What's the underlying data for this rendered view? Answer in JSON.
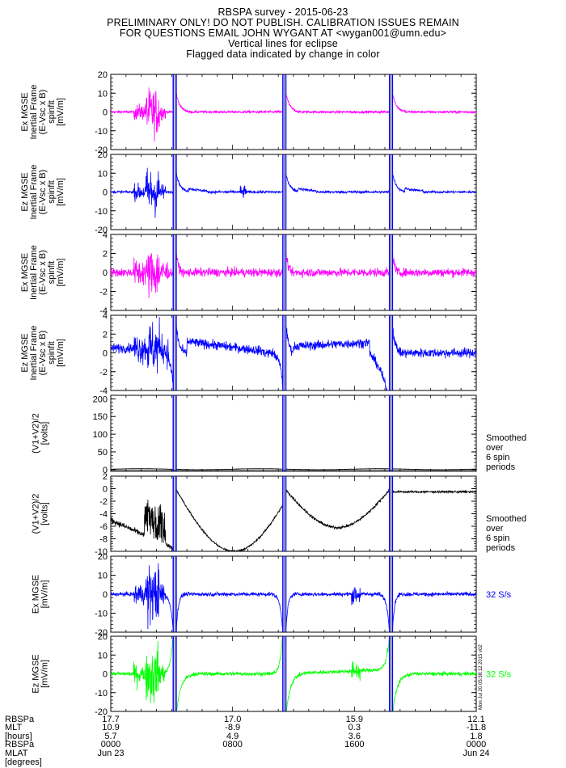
{
  "title_lines": [
    "RBSPA survey - 2015-06-23",
    "PRELIMINARY ONLY! DO NOT PUBLISH. CALIBRATION ISSUES REMAIN",
    "FOR QUESTIONS EMAIL JOHN WYGANT AT <wygan001@umn.edu>",
    "Vertical lines for eclipse",
    "Flagged data indicated by change in color"
  ],
  "colors": {
    "magenta": "#ff00ff",
    "blue": "#0000ff",
    "green": "#00ff00",
    "black": "#000000",
    "eclipse": "#0000ff"
  },
  "chart_data": [
    {
      "type": "line",
      "id": "p1",
      "ylabel": [
        "Ex MGSE",
        "Inertial Frame",
        "(E-Vsc x B)",
        "spinfit",
        "[mV/m]"
      ],
      "ylim": [
        -20,
        20
      ],
      "yticks": [
        "20",
        "10",
        "0",
        "-10",
        "-20"
      ],
      "color": "magenta"
    },
    {
      "type": "line",
      "id": "p2",
      "ylabel": [
        "Ez MGSE",
        "Inertial Frame",
        "(E-Vsc x B)",
        "spinfit",
        "[mV/m]"
      ],
      "ylim": [
        -20,
        20
      ],
      "yticks": [
        "20",
        "10",
        "0",
        "-10",
        "-20"
      ],
      "color": "blue"
    },
    {
      "type": "line",
      "id": "p3",
      "ylabel": [
        "Ex MGSE",
        "Inertial Frame",
        "(E-Vsc x B)",
        "spinfit",
        "[mV/m]"
      ],
      "ylim": [
        -4,
        4
      ],
      "yticks": [
        "4",
        "2",
        "0",
        "-2",
        "-4"
      ],
      "color": "magenta"
    },
    {
      "type": "line",
      "id": "p4",
      "ylabel": [
        "Ez MGSE",
        "Inertial Frame",
        "(E-Vsc x B)",
        "spinfit",
        "[mV/m]"
      ],
      "ylim": [
        -4,
        4
      ],
      "yticks": [
        "4",
        "2",
        "0",
        "-2",
        "-4"
      ],
      "color": "blue"
    },
    {
      "type": "line",
      "id": "p5",
      "ylabel": [
        "(V1+V2)/2",
        "[volts]"
      ],
      "ylim": [
        -5,
        210
      ],
      "yticks": [
        "200",
        "150",
        "100",
        "50",
        "0"
      ],
      "color": "black",
      "note": [
        "Smoothed",
        "over",
        "6 spin",
        "periods"
      ]
    },
    {
      "type": "line",
      "id": "p6",
      "ylabel": [
        "(V1+V2)/2",
        "[volts]"
      ],
      "ylim": [
        -10,
        2
      ],
      "yticks": [
        "2",
        "0",
        "-2",
        "-4",
        "-6",
        "-8",
        "-10"
      ],
      "color": "black",
      "note": [
        "Smoothed",
        "over",
        "6 spin",
        "periods"
      ]
    },
    {
      "type": "line",
      "id": "p7",
      "ylabel": [
        "Ex MGSE",
        "[mV/m]"
      ],
      "ylim": [
        -20,
        20
      ],
      "yticks": [
        "20",
        "10",
        "0",
        "-10",
        "-20"
      ],
      "color": "blue",
      "note": [
        "32 S/s"
      ]
    },
    {
      "type": "line",
      "id": "p8",
      "ylabel": [
        "Ez MGSE",
        "[mV/m]"
      ],
      "ylim": [
        -20,
        20
      ],
      "yticks": [
        "20",
        "10",
        "0",
        "-10",
        "-20"
      ],
      "color": "green",
      "note": [
        "32 S/s"
      ]
    }
  ],
  "x_axis": {
    "range_hours": [
      0,
      24
    ],
    "eclipse_hours": [
      [
        4.1,
        4.3
      ],
      [
        11.3,
        11.5
      ],
      [
        18.3,
        18.5
      ]
    ]
  },
  "footer": {
    "row_labels": [
      "RBSPa",
      "MLT",
      "[hours]",
      "RBSPa",
      "MLAT",
      "[degrees]"
    ],
    "columns": [
      {
        "values": [
          "17.7",
          "10.9",
          "5.7",
          "0000",
          "Jun 23"
        ]
      },
      {
        "values": [
          "17.0",
          "-8.9",
          "4.9",
          "0800",
          ""
        ]
      },
      {
        "values": [
          "15.9",
          "0.3",
          "3.6",
          "1600",
          ""
        ]
      },
      {
        "values": [
          "12.1",
          "-11.8",
          "1.8",
          "0000",
          "Jun 24"
        ]
      }
    ]
  },
  "stamp": "Mon Jul 20 05:38:12 2015 v02"
}
